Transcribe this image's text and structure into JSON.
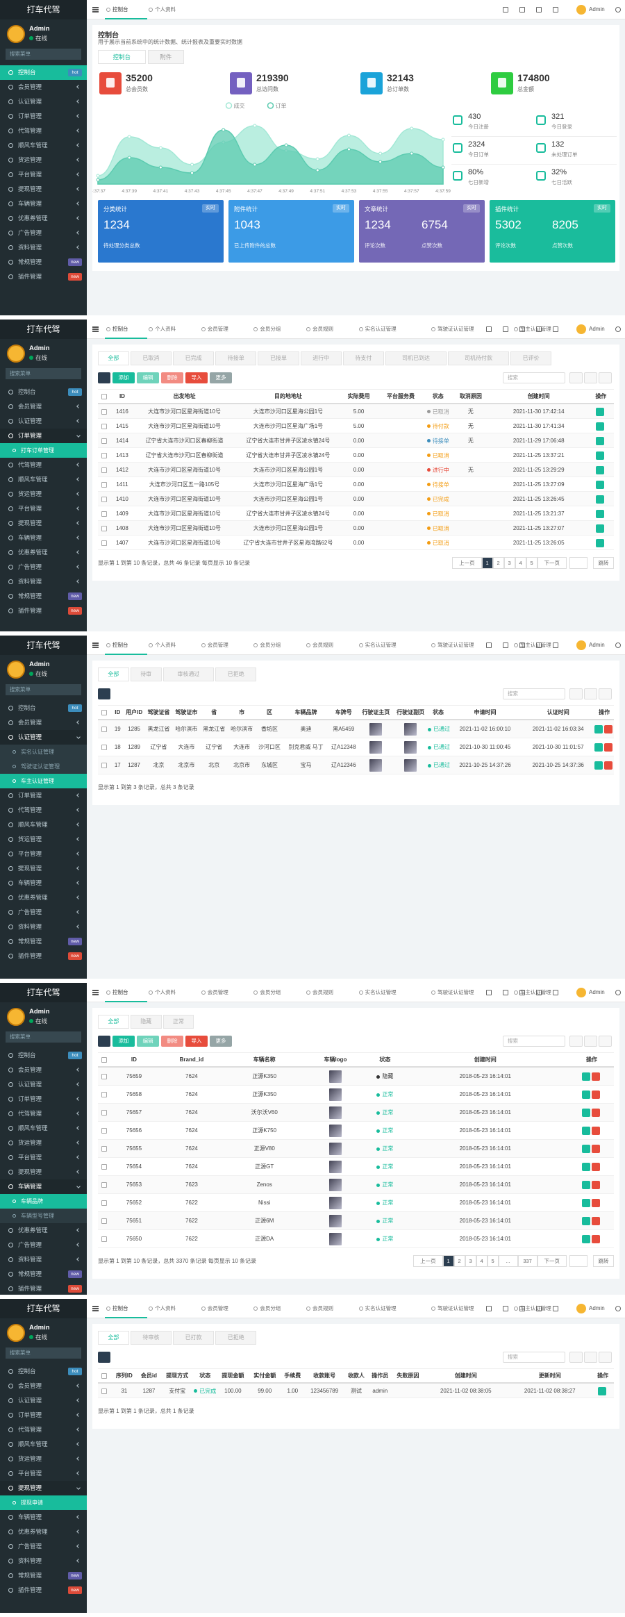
{
  "sidebar": {
    "brand": "打车代驾",
    "user": "Admin",
    "status": "在线",
    "search": "搜索菜单",
    "menu": [
      {
        "label": "控制台",
        "badge": "hot",
        "badge_color": "#3c8dbc"
      },
      {
        "label": "会员管理"
      },
      {
        "label": "认证管理"
      },
      {
        "label": "订单管理"
      },
      {
        "label": "代驾管理"
      },
      {
        "label": "顺风车管理"
      },
      {
        "label": "货运管理"
      },
      {
        "label": "平台管理"
      },
      {
        "label": "提现管理"
      },
      {
        "label": "车辆管理"
      },
      {
        "label": "优惠券管理"
      },
      {
        "label": "广告管理"
      },
      {
        "label": "资料管理"
      },
      {
        "label": "常规管理",
        "badge": "new",
        "badge_color": "#605ca8"
      },
      {
        "label": "插件管理",
        "badge": "new",
        "badge_color": "#dd4b39"
      }
    ]
  },
  "topnav": {
    "tabs": [
      "控制台",
      "个人资料",
      "会员管理",
      "会员分组",
      "会员规则",
      "实名认证管理",
      "驾驶证认证管理",
      "车主认证管理"
    ],
    "user": "Admin"
  },
  "panels": [
    {
      "active": 0,
      "tab_count": 2,
      "dashboard": {
        "title": "控制台",
        "desc": "用于展示当前系统中的统计数据、统计报表及重要实时数据",
        "tabs": [
          "控制台",
          "附件"
        ],
        "stats": [
          {
            "value": 35200,
            "label": "总会员数",
            "color": "#e74c3c"
          },
          {
            "value": 219390,
            "label": "总访问数",
            "color": "#7460c0"
          },
          {
            "value": 32143,
            "label": "总订单数",
            "color": "#1aa3d9"
          },
          {
            "value": 174800,
            "label": "总金额",
            "color": "#2ecc40"
          }
        ],
        "chart": {
          "x": [
            "4:37:37",
            "4:37:39",
            "4:37:41",
            "4:37:43",
            "4:37:45",
            "4:37:47",
            "4:37:49",
            "4:37:51",
            "4:37:53",
            "4:37:55",
            "4:37:57",
            "4:37:59"
          ],
          "ylim": [
            0,
            250
          ],
          "series": [
            {
              "name": "成交",
              "color": "#a3e8d6",
              "values": [
                30,
                170,
                130,
                70,
                150,
                210,
                120,
                90,
                175,
                110,
                200,
                160
              ]
            },
            {
              "name": "订单",
              "color": "#5ccbb0",
              "values": [
                15,
                95,
                60,
                40,
                195,
                70,
                140,
                50,
                125,
                80,
                110,
                60
              ]
            }
          ]
        },
        "side": [
          {
            "value": 430,
            "label": "今日注册"
          },
          {
            "value": 321,
            "label": "今日登录"
          },
          {
            "value": 2324,
            "label": "今日订单"
          },
          {
            "value": 132,
            "label": "未处理订单"
          },
          {
            "value": "80%",
            "label": "七日新增"
          },
          {
            "value": "32%",
            "label": "七日活跃"
          }
        ],
        "cards": [
          {
            "title": "分类统计",
            "badge": "实时",
            "color": "#2a78cf",
            "items": [
              {
                "big": 1234,
                "small": "待处理分类总数"
              }
            ]
          },
          {
            "title": "附件统计",
            "badge": "实时",
            "color": "#3c9be6",
            "items": [
              {
                "big": 1043,
                "small": "已上传附件的总数"
              }
            ]
          },
          {
            "title": "文章统计",
            "badge": "实时",
            "color": "#7468b6",
            "items": [
              {
                "big": 1234,
                "small": "评论次数"
              },
              {
                "big": 6754,
                "small": "点赞次数"
              }
            ]
          },
          {
            "title": "插件统计",
            "badge": "实时",
            "color": "#1abc9c",
            "items": [
              {
                "big": 5302,
                "small": "评论次数"
              },
              {
                "big": 8205,
                "small": "点赞次数"
              }
            ]
          }
        ]
      }
    },
    {
      "expand": 3,
      "sub": [
        "打车订单管理"
      ],
      "active_sub": 0,
      "tab_count": 8,
      "table": {
        "tabs": [
          "全部",
          "已取消",
          "已完成",
          "待接单",
          "已接单",
          "进行中",
          "待支付",
          "司机已到达",
          "司机待付款",
          "已评价"
        ],
        "buttons": [
          {
            "label": "添加",
            "color": "#18bc9c"
          },
          {
            "label": "编辑",
            "color": "#6fd3bb"
          },
          {
            "label": "删除",
            "color": "#f28b82"
          },
          {
            "label": "导入",
            "color": "#e74c3c"
          },
          {
            "label": "更多",
            "color": "#95a5a6"
          }
        ],
        "search": "搜索",
        "checkbox": true,
        "actions": [
          "#18bc9c"
        ],
        "thumb_columns": [],
        "columns": [
          "ID",
          "出发地址",
          "目的地地址",
          "实际费用",
          "平台服务费",
          "状态",
          "取消原因",
          "创建时间",
          "操作"
        ],
        "rows": [
          [
            1416,
            "大连市沙河口区星海街道10号",
            "大连市沙河口区星海公园1号",
            "5.00",
            null,
            {
              "text": "已取消",
              "color": "#999999"
            },
            "无",
            "2021-11-30 17:42:14"
          ],
          [
            1415,
            "大连市沙河口区星海街道10号",
            "大连市沙河口区星海广场1号",
            "5.00",
            null,
            {
              "text": "待付款",
              "color": "#f39c12"
            },
            "无",
            "2021-11-30 17:41:34"
          ],
          [
            1414,
            "辽宁省大连市沙河口区春柳街道",
            "辽宁省大连市甘井子区凌水镇24号",
            "0.00",
            null,
            {
              "text": "待接单",
              "color": "#3c8dbc"
            },
            "无",
            "2021-11-29 17:06:48"
          ],
          [
            1413,
            "辽宁省大连市沙河口区春柳街道",
            "辽宁省大连市甘井子区凌水镇24号",
            "0.00",
            null,
            {
              "text": "已取消",
              "color": "#f39c12"
            },
            null,
            "2021-11-25 13:37:21"
          ],
          [
            1412,
            "大连市沙河口区星海街道10号",
            "大连市沙河口区星海公园1号",
            "0.00",
            null,
            {
              "text": "进行中",
              "color": "#e74c3c"
            },
            "无",
            "2021-11-25 13:29:29"
          ],
          [
            1411,
            "大连市沙河口区五一路105号",
            "大连市沙河口区星海广场1号",
            "0.00",
            null,
            {
              "text": "待接单",
              "color": "#f39c12"
            },
            null,
            "2021-11-25 13:27:09"
          ],
          [
            1410,
            "大连市沙河口区星海街道10号",
            "大连市沙河口区星海公园1号",
            "0.00",
            null,
            {
              "text": "已完成",
              "color": "#f39c12"
            },
            null,
            "2021-11-25 13:26:45"
          ],
          [
            1409,
            "大连市沙河口区星海街道10号",
            "辽宁省大连市甘井子区凌水镇24号",
            "0.00",
            null,
            {
              "text": "已取消",
              "color": "#f39c12"
            },
            null,
            "2021-11-25 13:21:37"
          ],
          [
            1408,
            "大连市沙河口区星海街道10号",
            "大连市沙河口区星海公园1号",
            "0.00",
            null,
            {
              "text": "已取消",
              "color": "#f39c12"
            },
            null,
            "2021-11-25 13:27:07"
          ],
          [
            1407,
            "大连市沙河口区星海街道10号",
            "辽宁省大连市甘井子区星海湾路62号",
            "0.00",
            null,
            {
              "text": "已取消",
              "color": "#f39c12"
            },
            null,
            "2021-11-25 13:26:05"
          ]
        ],
        "footer": "显示第 1 到第 10 条记录，总共 46 条记录 每页显示 10 条记录",
        "pager": [
          "上一页",
          "1",
          "2",
          "3",
          "4",
          "5",
          "下一页"
        ],
        "pager_active": 1,
        "jump": "跳转"
      }
    },
    {
      "expand": 2,
      "sub": [
        "实名认证管理",
        "驾驶证认证管理",
        "车主认证管理"
      ],
      "active_sub": 2,
      "tab_count": 8,
      "table": {
        "tabs": [
          "全部",
          "待审",
          "审核通过",
          "已拒绝"
        ],
        "buttons": [],
        "search": "搜索",
        "checkbox": true,
        "actions": [
          "#18bc9c",
          "#e74c3c"
        ],
        "thumb_columns": [
          9,
          10
        ],
        "columns": [
          "ID",
          "用户ID",
          "驾驶证省",
          "驾驶证市",
          "省",
          "市",
          "区",
          "车辆品牌",
          "车牌号",
          "行驶证主页",
          "行驶证副页",
          "状态",
          "申请时间",
          "认证时间",
          "操作"
        ],
        "rows": [
          [
            19,
            1285,
            "黑龙江省",
            "哈尔滨市",
            "黑龙江省",
            "哈尔滨市",
            "香坊区",
            "奥迪",
            "黑A5459",
            null,
            null,
            {
              "text": "已通过",
              "color": "#18bc9c"
            },
            "2021-11-02 16:00:10",
            "2021-11-02 16:03:34"
          ],
          [
            18,
            1289,
            "辽宁省",
            "大连市",
            "辽宁省",
            "大连市",
            "沙河口区",
            "别克君威 马丁",
            "辽A12348",
            null,
            null,
            {
              "text": "已通过",
              "color": "#18bc9c"
            },
            "2021-10-30 11:00:45",
            "2021-10-30 11:01:57"
          ],
          [
            17,
            1287,
            "北京",
            "北京市",
            "北京",
            "北京市",
            "东城区",
            "宝马",
            "辽A12346",
            null,
            null,
            {
              "text": "已通过",
              "color": "#18bc9c"
            },
            "2021-10-25 14:37:26",
            "2021-10-25 14:37:36"
          ]
        ],
        "footer": "显示第 1 到第 3 条记录，总共 3 条记录"
      }
    },
    {
      "expand": 9,
      "sub": [
        "车辆品牌",
        "车辆型号管理"
      ],
      "active_sub": 0,
      "tab_count": 8,
      "table": {
        "tabs": [
          "全部",
          "隐藏",
          "正常"
        ],
        "buttons": [
          {
            "label": "添加",
            "color": "#18bc9c"
          },
          {
            "label": "编辑",
            "color": "#6fd3bb"
          },
          {
            "label": "删除",
            "color": "#f28b82"
          },
          {
            "label": "导入",
            "color": "#e74c3c"
          },
          {
            "label": "更多",
            "color": "#95a5a6"
          }
        ],
        "search": "搜索",
        "checkbox": true,
        "actions": [
          "#18bc9c",
          "#e74c3c"
        ],
        "thumb_columns": [
          3
        ],
        "columns": [
          "ID",
          "Brand_id",
          "车辆名称",
          "车辆logo",
          "状态",
          "创建时间",
          "操作"
        ],
        "rows": [
          [
            75659,
            7624,
            "正源K350",
            null,
            {
              "text": "隐藏",
              "color": "#333333"
            },
            "2018-05-23 16:14:01"
          ],
          [
            75658,
            7624,
            "正源K350",
            null,
            {
              "text": "正常",
              "color": "#18bc9c"
            },
            "2018-05-23 16:14:01"
          ],
          [
            75657,
            7624,
            "沃尔沃V60",
            null,
            {
              "text": "正常",
              "color": "#18bc9c"
            },
            "2018-05-23 16:14:01"
          ],
          [
            75656,
            7624,
            "正源K750",
            null,
            {
              "text": "正常",
              "color": "#18bc9c"
            },
            "2018-05-23 16:14:01"
          ],
          [
            75655,
            7624,
            "正源V80",
            null,
            {
              "text": "正常",
              "color": "#18bc9c"
            },
            "2018-05-23 16:14:01"
          ],
          [
            75654,
            7624,
            "正源GT",
            null,
            {
              "text": "正常",
              "color": "#18bc9c"
            },
            "2018-05-23 16:14:01"
          ],
          [
            75653,
            7623,
            "Zenos",
            null,
            {
              "text": "正常",
              "color": "#18bc9c"
            },
            "2018-05-23 16:14:01"
          ],
          [
            75652,
            7622,
            "Nissi",
            null,
            {
              "text": "正常",
              "color": "#18bc9c"
            },
            "2018-05-23 16:14:01"
          ],
          [
            75651,
            7622,
            "正源6M",
            null,
            {
              "text": "正常",
              "color": "#18bc9c"
            },
            "2018-05-23 16:14:01"
          ],
          [
            75650,
            7622,
            "正源DA",
            null,
            {
              "text": "正常",
              "color": "#18bc9c"
            },
            "2018-05-23 16:14:01"
          ]
        ],
        "footer": "显示第 1 到第 10 条记录，总共 3370 条记录 每页显示 10 条记录",
        "pager": [
          "上一页",
          "1",
          "2",
          "3",
          "4",
          "5",
          "...",
          "337",
          "下一页"
        ],
        "pager_active": 1,
        "jump": "跳转"
      }
    },
    {
      "expand": 8,
      "sub": [
        "提现申请"
      ],
      "active_sub": 0,
      "tab_count": 8,
      "table": {
        "tabs": [
          "全部",
          "待审核",
          "已打款",
          "已拒绝"
        ],
        "buttons": [],
        "search": "搜索",
        "checkbox": true,
        "actions": [
          "#18bc9c"
        ],
        "thumb_columns": [],
        "columns": [
          "序列ID",
          "会员id",
          "提现方式",
          "状态",
          "提现金额",
          "实付金额",
          "手续费",
          "收款账号",
          "收款人",
          "操作员",
          "失败原因",
          "创建时间",
          "更新时间",
          "操作"
        ],
        "rows": [
          [
            31,
            1287,
            "支付宝",
            {
              "text": "已完成",
              "color": "#18bc9c"
            },
            "100.00",
            "99.00",
            "1.00",
            "123456789",
            "测试",
            "admin",
            null,
            "2021-11-02 08:38:05",
            "2021-11-02 08:38:27"
          ]
        ],
        "footer": "显示第 1 到第 1 条记录，总共 1 条记录"
      }
    }
  ]
}
